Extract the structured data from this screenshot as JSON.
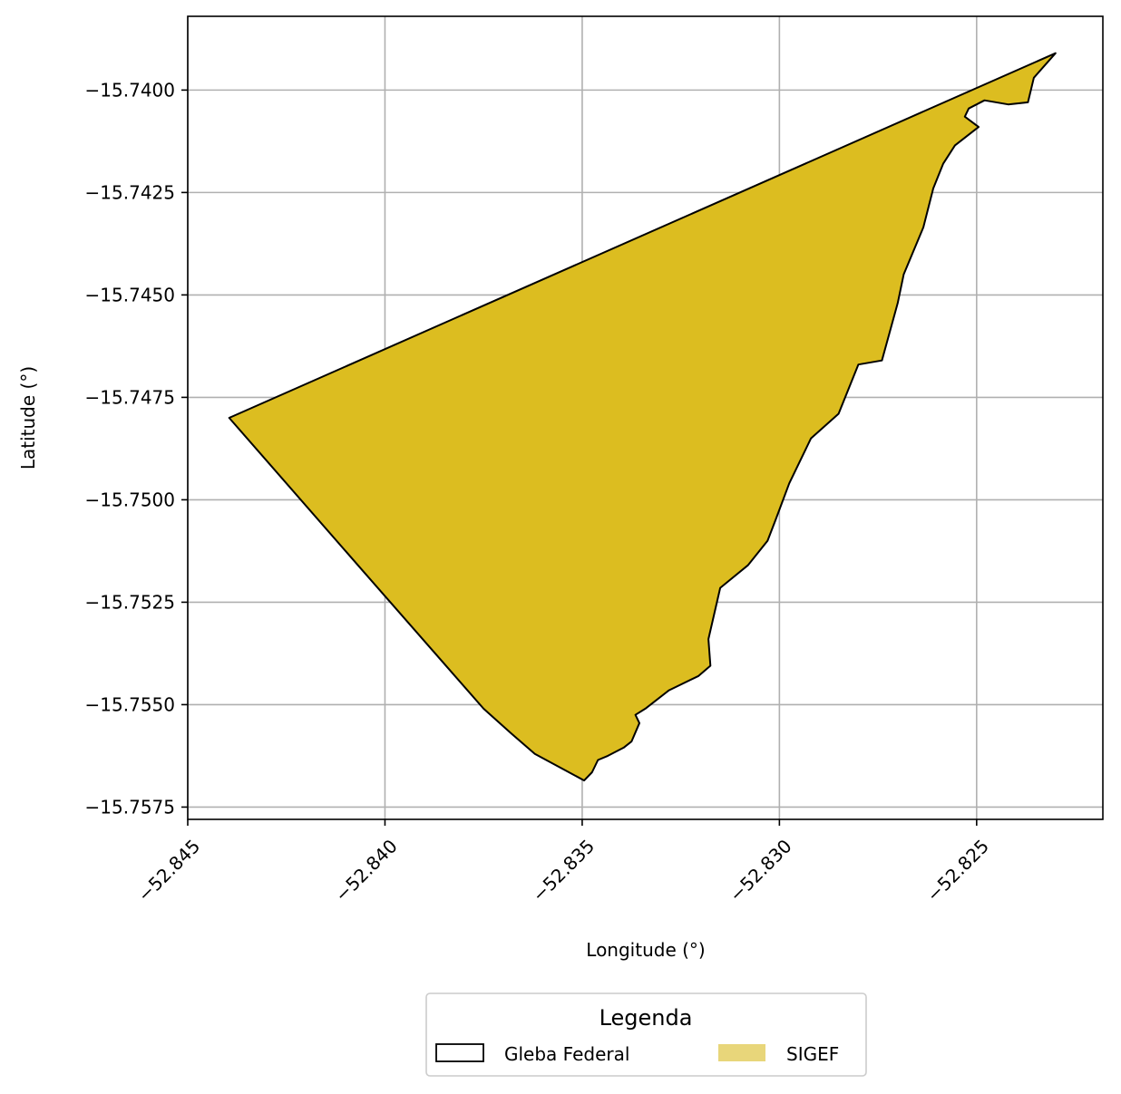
{
  "chart_data": {
    "type": "map",
    "xlabel": "Longitude (°)",
    "ylabel": "Latitude (°)",
    "xlim": [
      -52.845,
      -52.8218
    ],
    "ylim": [
      -15.7578,
      -15.7382
    ],
    "xticks": [
      -52.845,
      -52.84,
      -52.835,
      -52.83,
      -52.825
    ],
    "xtick_labels": [
      "−52.845",
      "−52.840",
      "−52.835",
      "−52.830",
      "−52.825"
    ],
    "yticks": [
      -15.74,
      -15.7425,
      -15.745,
      -15.7475,
      -15.75,
      -15.7525,
      -15.755,
      -15.7575
    ],
    "ytick_labels": [
      "−15.7400",
      "−15.7425",
      "−15.7450",
      "−15.7475",
      "−15.7500",
      "−15.7525",
      "−15.7550",
      "−15.7575"
    ],
    "grid": true,
    "legend": {
      "title": "Legenda",
      "placement": "bottom-center",
      "entries": [
        {
          "label": "Gleba Federal",
          "style": "outline",
          "color": "#000000"
        },
        {
          "label": "SIGEF",
          "style": "fill",
          "color": "#e8d67a"
        }
      ]
    },
    "polygon": {
      "name": "SIGEF",
      "fill": "#dcbd20",
      "stroke": "#000000",
      "coordinates": [
        [
          -52.823,
          -15.7391
        ],
        [
          -52.82355,
          -15.7397
        ],
        [
          -52.8237,
          -15.7403
        ],
        [
          -52.8242,
          -15.74035
        ],
        [
          -52.8248,
          -15.74025
        ],
        [
          -52.8252,
          -15.74045
        ],
        [
          -52.8253,
          -15.74065
        ],
        [
          -52.82495,
          -15.7409
        ],
        [
          -52.82555,
          -15.74135
        ],
        [
          -52.82585,
          -15.7418
        ],
        [
          -52.8261,
          -15.7424
        ],
        [
          -52.82635,
          -15.74335
        ],
        [
          -52.82685,
          -15.7445
        ],
        [
          -52.827,
          -15.7452
        ],
        [
          -52.8274,
          -15.7466
        ],
        [
          -52.828,
          -15.7467
        ],
        [
          -52.8285,
          -15.7479
        ],
        [
          -52.8292,
          -15.7485
        ],
        [
          -52.82975,
          -15.7496
        ],
        [
          -52.8301,
          -15.7505
        ],
        [
          -52.8303,
          -15.751
        ],
        [
          -52.8308,
          -15.7516
        ],
        [
          -52.8315,
          -15.75215
        ],
        [
          -52.8318,
          -15.7534
        ],
        [
          -52.83175,
          -15.75405
        ],
        [
          -52.83205,
          -15.7543
        ],
        [
          -52.8328,
          -15.75465
        ],
        [
          -52.8334,
          -15.7551
        ],
        [
          -52.83365,
          -15.75525
        ],
        [
          -52.83355,
          -15.75545
        ],
        [
          -52.83375,
          -15.7559
        ],
        [
          -52.83395,
          -15.75605
        ],
        [
          -52.83435,
          -15.75625
        ],
        [
          -52.8346,
          -15.75635
        ],
        [
          -52.83475,
          -15.75665
        ],
        [
          -52.83495,
          -15.75685
        ],
        [
          -52.8362,
          -15.7562
        ],
        [
          -52.8368,
          -15.7557
        ],
        [
          -52.8375,
          -15.7551
        ],
        [
          -52.8385,
          -15.754
        ],
        [
          -52.8405,
          -15.7518
        ],
        [
          -52.84395,
          -15.748
        ],
        [
          -52.823,
          -15.7391
        ]
      ]
    }
  }
}
